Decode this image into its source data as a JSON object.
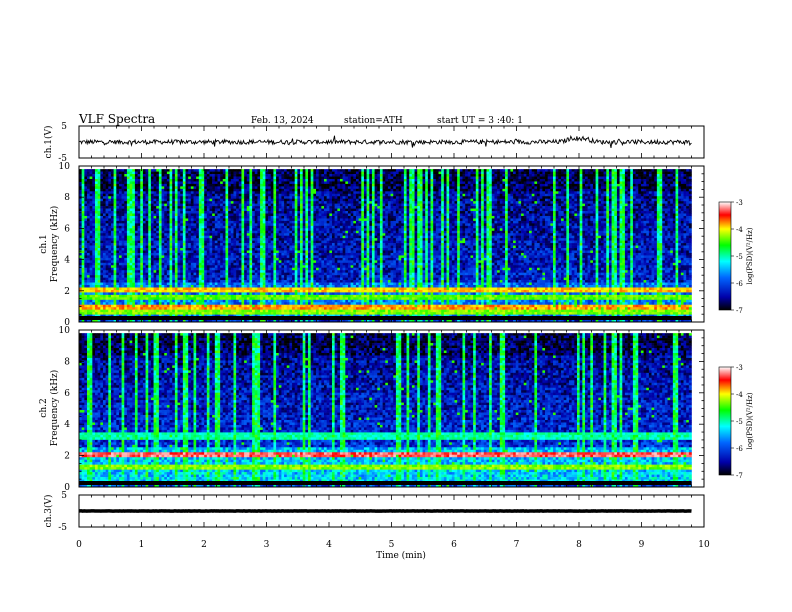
{
  "header": {
    "title": "VLF Spectra",
    "date": "Feb. 13, 2024",
    "station": "station=ATH",
    "start_ut": "start UT = 3 :40: 1"
  },
  "chart_data": [
    {
      "type": "line",
      "name": "ch1-waveform",
      "ylabel": "ch.1(V)",
      "ylim": [
        -5,
        5
      ],
      "y_ticks": [
        "5",
        "-5"
      ],
      "xlim": [
        0,
        10
      ],
      "x_end": 9.8,
      "baseline": 0.0,
      "noise_amplitude": 1.0,
      "bumps": [
        {
          "x": 7.9,
          "dy": 1.2
        },
        {
          "x": 8.1,
          "dy": 1.0
        }
      ]
    },
    {
      "type": "heatmap",
      "name": "ch1-spectrogram",
      "ylabel_top": "ch.1",
      "ylabel": "Frequency (kHz)",
      "ylim": [
        0,
        10
      ],
      "y_ticks": [
        "0",
        "2",
        "4",
        "6",
        "8",
        "10"
      ],
      "xlim": [
        0,
        10
      ],
      "x_end": 9.8,
      "colorbar": {
        "label": "log(PSD)(V²/Hz)",
        "range": [
          -7,
          -3
        ],
        "ticks": [
          "-3",
          "-4",
          "-5",
          "-6",
          "-7"
        ]
      },
      "bands_khz": [
        {
          "f": 2.1,
          "level": -4.4
        },
        {
          "f": 1.6,
          "level": -4.9
        },
        {
          "f": 1.0,
          "level": -4.3
        },
        {
          "f": 0.6,
          "level": -4.8
        }
      ]
    },
    {
      "type": "heatmap",
      "name": "ch2-spectrogram",
      "ylabel_top": "ch.2",
      "ylabel": "Frequency (kHz)",
      "ylim": [
        0,
        10
      ],
      "y_ticks": [
        "0",
        "2",
        "4",
        "6",
        "8",
        "10"
      ],
      "xlim": [
        0,
        10
      ],
      "x_end": 9.8,
      "colorbar": {
        "label": "log(PSD)(V²/Hz)",
        "range": [
          -7,
          -3
        ],
        "ticks": [
          "-3",
          "-4",
          "-5",
          "-6",
          "-7"
        ]
      },
      "bands_khz": [
        {
          "f": 2.1,
          "level": -4.0
        },
        {
          "f": 3.3,
          "level": -5.0
        },
        {
          "f": 1.3,
          "level": -5.0
        }
      ]
    },
    {
      "type": "line",
      "name": "ch3-waveform",
      "ylabel": "ch.3(V)",
      "ylim": [
        -5,
        5
      ],
      "y_ticks": [
        "5",
        "-5"
      ],
      "xlim": [
        0,
        10
      ],
      "x_end": 9.8,
      "baseline": 0.0,
      "noise_amplitude": 0.05
    }
  ],
  "x_axis": {
    "label": "Time (min)",
    "ticks": [
      "0",
      "1",
      "2",
      "3",
      "4",
      "5",
      "6",
      "7",
      "8",
      "9",
      "10"
    ]
  },
  "colors": {
    "colormap": [
      "#000066",
      "#0000ff",
      "#0088ff",
      "#00ffff",
      "#00ff44",
      "#ffff00",
      "#ff0000",
      "#ffffff"
    ],
    "trace": "#000000"
  }
}
